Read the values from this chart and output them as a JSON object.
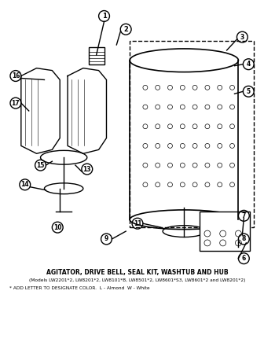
{
  "title": "AGITATOR, DRIVE BELL, SEAL KIT, WASHTUB AND HUB",
  "subtitle": "(Models LW2201*2, LW8201*2, LW8101*B, LW8501*2, LW8601*S3, LW8601*2 and LW8201*2)",
  "footnote": "* ADD LETTER TO DESIGNATE COLOR.  L - Almond  W - White",
  "bg_color": "#ffffff",
  "fig_width": 3.5,
  "fig_height": 4.4,
  "dpi": 100
}
